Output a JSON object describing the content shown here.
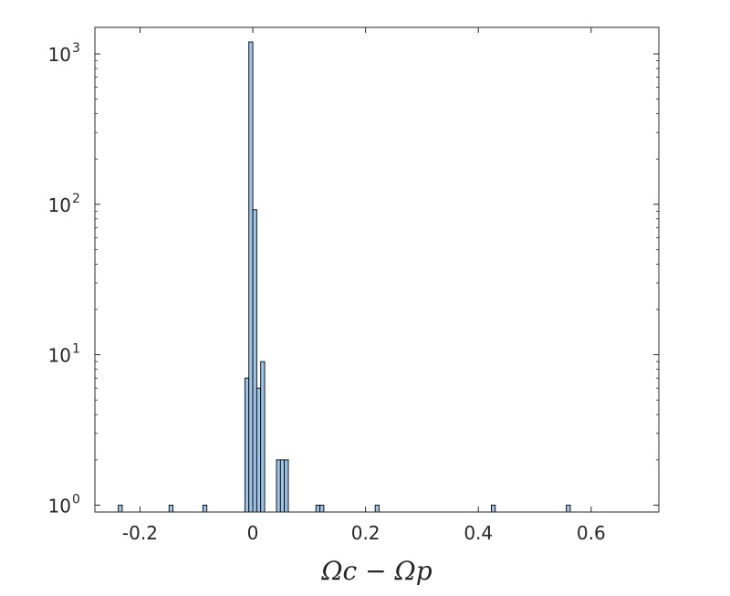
{
  "chart_data": {
    "type": "bar",
    "xlabel": "Ωc − Ωp",
    "ylabel": "",
    "title": "",
    "y_scale": "log",
    "ylim": [
      0.9,
      1500
    ],
    "xlim": [
      -0.28,
      0.72
    ],
    "bar_color": "#9dc3e6",
    "edge_color": "#000000",
    "bin_width": 0.007,
    "bins": [
      {
        "x": -0.235,
        "count": 1
      },
      {
        "x": -0.145,
        "count": 1
      },
      {
        "x": -0.085,
        "count": 1
      },
      {
        "x": -0.0105,
        "count": 7
      },
      {
        "x": -0.0035,
        "count": 1200
      },
      {
        "x": 0.0035,
        "count": 92
      },
      {
        "x": 0.0105,
        "count": 6
      },
      {
        "x": 0.0175,
        "count": 9
      },
      {
        "x": 0.0455,
        "count": 2
      },
      {
        "x": 0.0525,
        "count": 2
      },
      {
        "x": 0.0595,
        "count": 2
      },
      {
        "x": 0.1155,
        "count": 1
      },
      {
        "x": 0.1225,
        "count": 1
      },
      {
        "x": 0.2205,
        "count": 1
      },
      {
        "x": 0.4265,
        "count": 1
      },
      {
        "x": 0.5595,
        "count": 1
      }
    ],
    "x_ticks": [
      {
        "value": -0.2,
        "label": "-0.2"
      },
      {
        "value": 0,
        "label": "0"
      },
      {
        "value": 0.2,
        "label": "0.2"
      },
      {
        "value": 0.4,
        "label": "0.4"
      },
      {
        "value": 0.6,
        "label": "0.6"
      }
    ],
    "y_ticks": [
      {
        "value": 1,
        "base": "10",
        "exp": "0"
      },
      {
        "value": 10,
        "base": "10",
        "exp": "1"
      },
      {
        "value": 100,
        "base": "10",
        "exp": "2"
      },
      {
        "value": 1000,
        "base": "10",
        "exp": "3"
      }
    ]
  }
}
